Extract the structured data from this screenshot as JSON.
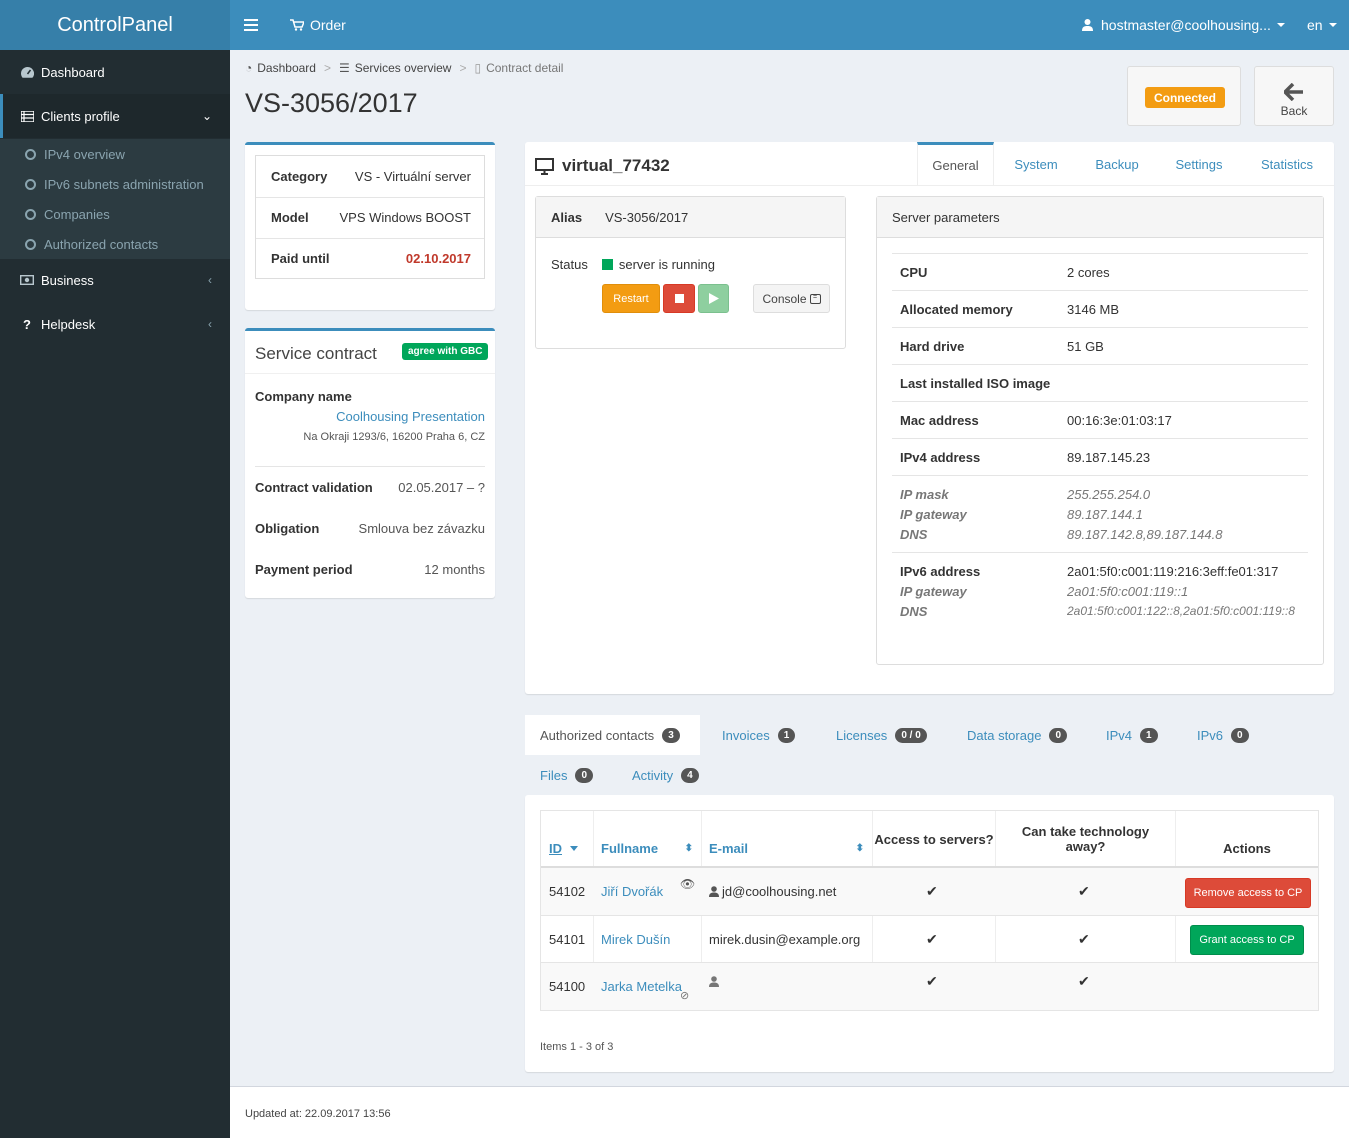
{
  "app": {
    "title": "ControlPanel",
    "updated": "Updated at: 22.09.2017 13:56"
  },
  "topbar": {
    "order": "Order",
    "user": "hostmaster@coolhousing...",
    "lang": "en"
  },
  "sidebar": {
    "items": [
      {
        "label": "Dashboard"
      },
      {
        "label": "Clients profile"
      },
      {
        "label": "Business"
      },
      {
        "label": "Helpdesk"
      }
    ],
    "sub": [
      {
        "label": "IPv4 overview"
      },
      {
        "label": "IPv6 subnets administration"
      },
      {
        "label": "Companies"
      },
      {
        "label": "Authorized contacts"
      }
    ]
  },
  "breadcrumb": [
    "Dashboard",
    "Services overview",
    "Contract detail"
  ],
  "page": {
    "title": "VS-3056/2017",
    "connected": "Connected",
    "back": "Back"
  },
  "summary": {
    "category_label": "Category",
    "category": "VS - Virtuální server",
    "model_label": "Model",
    "model": "VPS Windows BOOST",
    "paid_label": "Paid until",
    "paid": "02.10.2017"
  },
  "contract": {
    "title": "Service contract",
    "badge": "agree with GBC",
    "company_label": "Company name",
    "company": "Coolhousing Presentation",
    "address": "Na Okraji 1293/6, 16200 Praha 6, CZ",
    "validation_label": "Contract validation",
    "validation": "02.05.2017 – ?",
    "obligation_label": "Obligation",
    "obligation": "Smlouva bez závazku",
    "period_label": "Payment period",
    "period": "12 months"
  },
  "server": {
    "name": "virtual_77432",
    "tabs": [
      "General",
      "System",
      "Backup",
      "Settings",
      "Statistics"
    ],
    "alias_label": "Alias",
    "alias": "VS-3056/2017",
    "status_label": "Status",
    "status": "server is running",
    "restart": "Restart",
    "console": "Console",
    "status_color": "#00a65a"
  },
  "params": {
    "title": "Server parameters",
    "cpu_label": "CPU",
    "cpu": "2 cores",
    "mem_label": "Allocated memory",
    "mem": "3146 MB",
    "hdd_label": "Hard drive",
    "hdd": "51 GB",
    "iso_label": "Last installed ISO image",
    "mac_label": "Mac address",
    "mac": "00:16:3e:01:03:17",
    "ipv4_label": "IPv4 address",
    "ipv4": "89.187.145.23",
    "mask_label": "IP mask",
    "mask": "255.255.254.0",
    "gw_label": "IP gateway",
    "gw": "89.187.144.1",
    "dns_label": "DNS",
    "dns": "89.187.142.8,89.187.144.8",
    "ipv6_label": "IPv6 address",
    "ipv6": "2a01:5f0:c001:119:216:3eff:fe01:317",
    "gw6_label": "IP gateway",
    "gw6": "2a01:5f0:c001:119::1",
    "dns6_label": "DNS",
    "dns6": "2a01:5f0:c001:122::8,2a01:5f0:c001:119::8"
  },
  "btabs": [
    {
      "label": "Authorized contacts",
      "count": "3"
    },
    {
      "label": "Invoices",
      "count": "1"
    },
    {
      "label": "Licenses",
      "count": "0 / 0"
    },
    {
      "label": "Data storage",
      "count": "0"
    },
    {
      "label": "IPv4",
      "count": "1"
    },
    {
      "label": "IPv6",
      "count": "0"
    },
    {
      "label": "Files",
      "count": "0"
    },
    {
      "label": "Activity",
      "count": "4"
    }
  ],
  "table": {
    "headers": {
      "id": "ID",
      "name": "Fullname",
      "email": "E-mail",
      "access": "Access to servers?",
      "tech": "Can take technology away?",
      "actions": "Actions"
    },
    "rows": [
      {
        "id": "54102",
        "name": "Jiří Dvořák",
        "email": "jd@coolhousing.net",
        "action": "Remove access to CP"
      },
      {
        "id": "54101",
        "name": "Mirek Dušín",
        "email": "mirek.dusin@example.org",
        "action": "Grant access to CP"
      },
      {
        "id": "54100",
        "name": "Jarka Metelka",
        "email": "",
        "action": ""
      }
    ],
    "footer": "Items 1 - 3 of 3"
  }
}
